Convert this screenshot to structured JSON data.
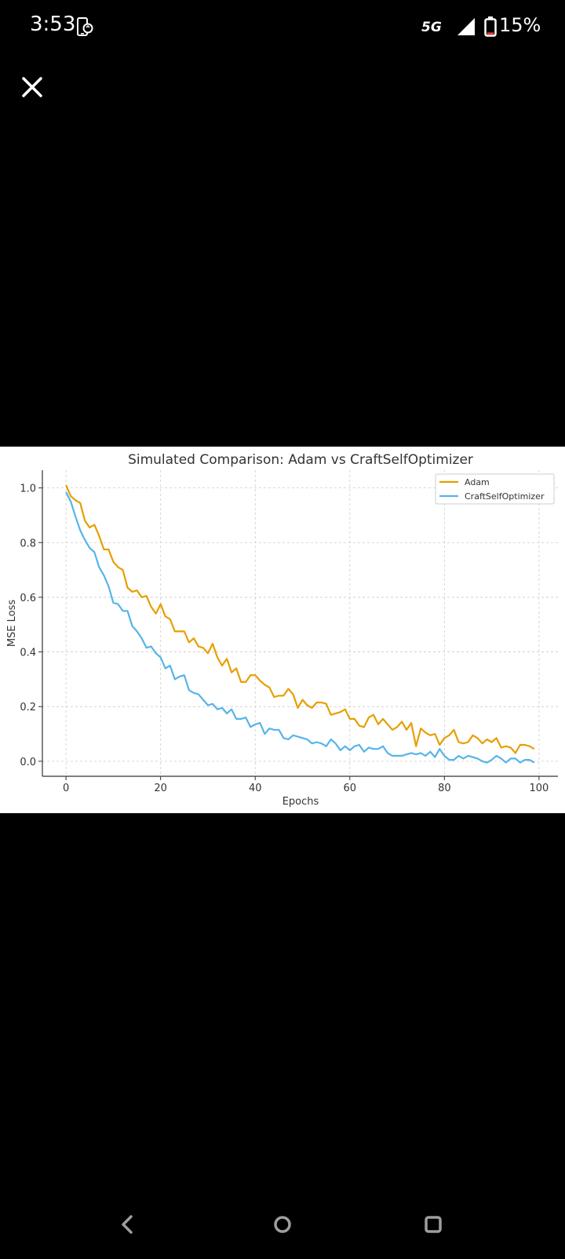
{
  "status_bar": {
    "time": "3:53",
    "network": "5G",
    "battery_percent": "15%",
    "battery_level": 0.15,
    "icons": [
      "phone-sync-icon",
      "signal-icon",
      "battery-icon"
    ]
  },
  "viewer": {
    "close_icon": "close-icon"
  },
  "chart_data": {
    "type": "line",
    "title": "Simulated Comparison: Adam vs CraftSelfOptimizer",
    "xlabel": "Epochs",
    "ylabel": "MSE Loss",
    "xlim": [
      -5,
      104
    ],
    "ylim": [
      -0.055,
      1.065
    ],
    "xticks": [
      0,
      20,
      40,
      60,
      80,
      100
    ],
    "xtick_labels": [
      "0",
      "20",
      "40",
      "60",
      "80",
      "100"
    ],
    "yticks": [
      0.0,
      0.2,
      0.4,
      0.6,
      0.8,
      1.0
    ],
    "ytick_labels": [
      "0.0",
      "0.2",
      "0.4",
      "0.6",
      "0.8",
      "1.0"
    ],
    "grid": true,
    "legend_position": "top-right",
    "x": [
      0,
      1,
      2,
      3,
      4,
      5,
      6,
      7,
      8,
      9,
      10,
      11,
      12,
      13,
      14,
      15,
      16,
      17,
      18,
      19,
      20,
      21,
      22,
      23,
      24,
      25,
      26,
      27,
      28,
      29,
      30,
      31,
      32,
      33,
      34,
      35,
      36,
      37,
      38,
      39,
      40,
      41,
      42,
      43,
      44,
      45,
      46,
      47,
      48,
      49,
      50,
      51,
      52,
      53,
      54,
      55,
      56,
      57,
      58,
      59,
      60,
      61,
      62,
      63,
      64,
      65,
      66,
      67,
      68,
      69,
      70,
      71,
      72,
      73,
      74,
      75,
      76,
      77,
      78,
      79,
      80,
      81,
      82,
      83,
      84,
      85,
      86,
      87,
      88,
      89,
      90,
      91,
      92,
      93,
      94,
      95,
      96,
      97,
      98,
      99
    ],
    "series": [
      {
        "name": "Adam",
        "color": "#E69F00",
        "values": [
          1.01,
          0.97,
          0.955,
          0.945,
          0.88,
          0.855,
          0.865,
          0.825,
          0.775,
          0.775,
          0.73,
          0.71,
          0.7,
          0.635,
          0.62,
          0.625,
          0.6,
          0.605,
          0.565,
          0.54,
          0.575,
          0.53,
          0.52,
          0.475,
          0.475,
          0.475,
          0.435,
          0.45,
          0.42,
          0.415,
          0.395,
          0.43,
          0.38,
          0.35,
          0.375,
          0.325,
          0.34,
          0.29,
          0.29,
          0.315,
          0.315,
          0.295,
          0.28,
          0.27,
          0.235,
          0.24,
          0.24,
          0.265,
          0.245,
          0.195,
          0.225,
          0.205,
          0.195,
          0.215,
          0.215,
          0.21,
          0.17,
          0.175,
          0.18,
          0.19,
          0.155,
          0.155,
          0.13,
          0.125,
          0.16,
          0.17,
          0.135,
          0.155,
          0.135,
          0.115,
          0.125,
          0.145,
          0.115,
          0.14,
          0.055,
          0.12,
          0.105,
          0.095,
          0.1,
          0.06,
          0.085,
          0.095,
          0.115,
          0.07,
          0.065,
          0.07,
          0.095,
          0.085,
          0.065,
          0.08,
          0.07,
          0.085,
          0.05,
          0.055,
          0.05,
          0.03,
          0.06,
          0.06,
          0.055,
          0.045
        ]
      },
      {
        "name": "CraftSelfOptimizer",
        "color": "#56B4E9",
        "values": [
          0.985,
          0.95,
          0.895,
          0.845,
          0.81,
          0.78,
          0.765,
          0.71,
          0.68,
          0.64,
          0.58,
          0.575,
          0.55,
          0.55,
          0.495,
          0.475,
          0.45,
          0.415,
          0.42,
          0.395,
          0.38,
          0.34,
          0.35,
          0.3,
          0.31,
          0.315,
          0.26,
          0.25,
          0.245,
          0.225,
          0.205,
          0.21,
          0.19,
          0.195,
          0.175,
          0.19,
          0.155,
          0.155,
          0.16,
          0.125,
          0.135,
          0.14,
          0.1,
          0.12,
          0.115,
          0.115,
          0.085,
          0.08,
          0.095,
          0.09,
          0.085,
          0.08,
          0.065,
          0.07,
          0.065,
          0.055,
          0.08,
          0.065,
          0.04,
          0.055,
          0.04,
          0.055,
          0.06,
          0.035,
          0.05,
          0.045,
          0.045,
          0.055,
          0.03,
          0.02,
          0.02,
          0.02,
          0.025,
          0.03,
          0.025,
          0.03,
          0.02,
          0.035,
          0.015,
          0.045,
          0.02,
          0.005,
          0.005,
          0.02,
          0.01,
          0.02,
          0.015,
          0.01,
          0.0,
          -0.005,
          0.005,
          0.02,
          0.01,
          -0.005,
          0.01,
          0.01,
          -0.005,
          0.005,
          0.005,
          -0.005
        ]
      }
    ]
  },
  "nav": {
    "icons": [
      "back-icon",
      "home-icon",
      "recents-icon"
    ]
  }
}
